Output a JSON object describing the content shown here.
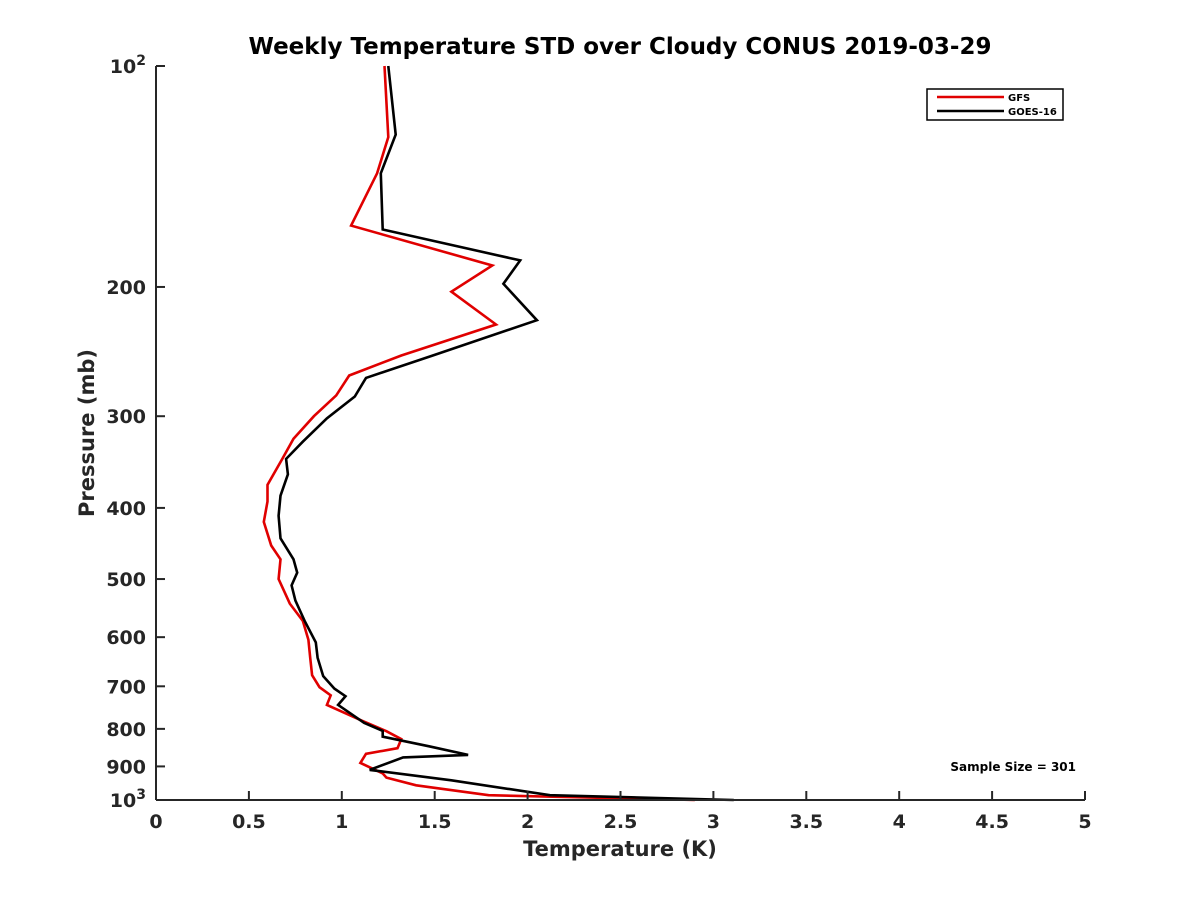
{
  "chart_data": {
    "type": "line",
    "title": "Weekly Temperature STD over Cloudy CONUS 2019-03-29",
    "xlabel": "Temperature (K)",
    "ylabel": "Pressure (mb)",
    "xlim": [
      0,
      5
    ],
    "ylim": [
      100,
      1000
    ],
    "y_scale": "log",
    "y_direction": "reversed",
    "grid": false,
    "legend_position": "top-right",
    "x_ticks": [
      "0",
      "0.5",
      "1",
      "1.5",
      "2",
      "2.5",
      "3",
      "3.5",
      "4",
      "4.5",
      "5"
    ],
    "x_tick_values": [
      0,
      0.5,
      1,
      1.5,
      2,
      2.5,
      3,
      3.5,
      4,
      4.5,
      5
    ],
    "y_ticks": [
      {
        "value": 100,
        "base": "10",
        "exp": "2"
      },
      {
        "value": 200,
        "label": "200"
      },
      {
        "value": 300,
        "label": "300"
      },
      {
        "value": 400,
        "label": "400"
      },
      {
        "value": 500,
        "label": "500"
      },
      {
        "value": 600,
        "label": "600"
      },
      {
        "value": 700,
        "label": "700"
      },
      {
        "value": 800,
        "label": "800"
      },
      {
        "value": 900,
        "label": "900"
      },
      {
        "value": 1000,
        "base": "10",
        "exp": "3"
      }
    ],
    "annotation": "Sample Size = 301",
    "series": [
      {
        "name": "GFS",
        "color": "#e00000",
        "points": [
          [
            1.23,
            100
          ],
          [
            1.25,
            125
          ],
          [
            1.19,
            140
          ],
          [
            1.05,
            165
          ],
          [
            1.81,
            187
          ],
          [
            1.59,
            203
          ],
          [
            1.83,
            225
          ],
          [
            1.32,
            248
          ],
          [
            1.04,
            264
          ],
          [
            0.97,
            281
          ],
          [
            0.85,
            300
          ],
          [
            0.74,
            322
          ],
          [
            0.68,
            343
          ],
          [
            0.6,
            372
          ],
          [
            0.6,
            392
          ],
          [
            0.58,
            418
          ],
          [
            0.62,
            450
          ],
          [
            0.67,
            470
          ],
          [
            0.66,
            500
          ],
          [
            0.72,
            540
          ],
          [
            0.79,
            570
          ],
          [
            0.82,
            605
          ],
          [
            0.83,
            640
          ],
          [
            0.84,
            676
          ],
          [
            0.88,
            702
          ],
          [
            0.94,
            720
          ],
          [
            0.92,
            742
          ],
          [
            1.11,
            780
          ],
          [
            1.24,
            806
          ],
          [
            1.32,
            826
          ],
          [
            1.3,
            850
          ],
          [
            1.13,
            865
          ],
          [
            1.1,
            890
          ],
          [
            1.22,
            920
          ],
          [
            1.24,
            932
          ],
          [
            1.4,
            955
          ],
          [
            1.79,
            985
          ],
          [
            2.9,
            1000
          ]
        ]
      },
      {
        "name": "GOES-16",
        "color": "#000000",
        "points": [
          [
            1.25,
            100
          ],
          [
            1.29,
            124
          ],
          [
            1.21,
            140
          ],
          [
            1.22,
            167
          ],
          [
            1.96,
            184
          ],
          [
            1.87,
            198
          ],
          [
            2.05,
            222
          ],
          [
            1.49,
            248
          ],
          [
            1.13,
            266
          ],
          [
            1.07,
            282
          ],
          [
            0.92,
            302
          ],
          [
            0.79,
            325
          ],
          [
            0.7,
            343
          ],
          [
            0.71,
            360
          ],
          [
            0.67,
            385
          ],
          [
            0.66,
            410
          ],
          [
            0.67,
            440
          ],
          [
            0.74,
            470
          ],
          [
            0.76,
            490
          ],
          [
            0.73,
            510
          ],
          [
            0.75,
            535
          ],
          [
            0.8,
            570
          ],
          [
            0.86,
            610
          ],
          [
            0.87,
            640
          ],
          [
            0.9,
            678
          ],
          [
            0.96,
            705
          ],
          [
            1.02,
            722
          ],
          [
            0.98,
            742
          ],
          [
            1.12,
            785
          ],
          [
            1.22,
            805
          ],
          [
            1.22,
            820
          ],
          [
            1.47,
            845
          ],
          [
            1.68,
            868
          ],
          [
            1.33,
            875
          ],
          [
            1.15,
            910
          ],
          [
            1.59,
            940
          ],
          [
            2.12,
            985
          ],
          [
            3.11,
            1000
          ]
        ]
      }
    ]
  }
}
